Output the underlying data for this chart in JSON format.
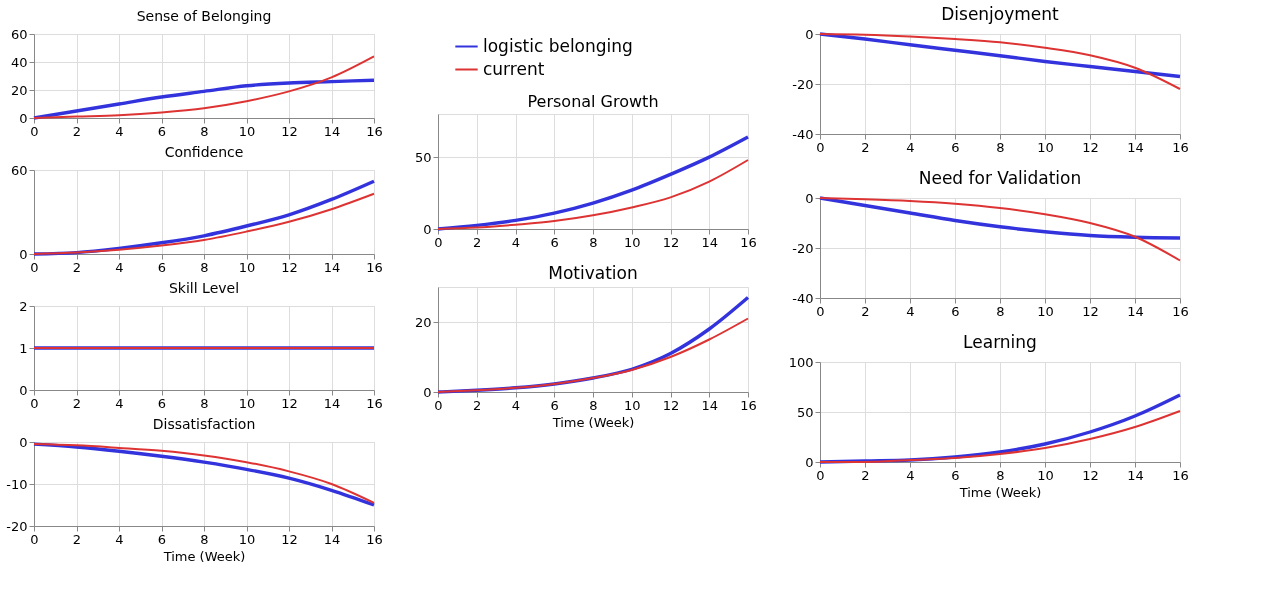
{
  "chart_data": [
    {
      "type": "line",
      "title": "Sense of Belonging",
      "x": [
        0,
        2,
        4,
        6,
        8,
        10,
        12,
        14,
        16
      ],
      "xlim": [
        0,
        16
      ],
      "xticks": [
        0,
        2,
        4,
        6,
        8,
        10,
        12,
        14,
        16
      ],
      "ylim": [
        0,
        60
      ],
      "yticks": [
        0,
        20,
        40,
        60
      ],
      "grid": true,
      "legend": "top",
      "line_style": "solid",
      "series": [
        {
          "name": "logistic belonging",
          "color": "#3333dd",
          "values": [
            0,
            5,
            10,
            15,
            19,
            23,
            25,
            26,
            27
          ]
        },
        {
          "name": "current",
          "color": "#dd3333",
          "values": [
            0,
            1,
            2,
            4,
            7,
            12,
            19,
            29,
            44
          ]
        }
      ]
    },
    {
      "type": "line",
      "title": "Confidence",
      "x": [
        0,
        2,
        4,
        6,
        8,
        10,
        12,
        14,
        16
      ],
      "xlim": [
        0,
        16
      ],
      "xticks": [
        0,
        2,
        4,
        6,
        8,
        10,
        12,
        14,
        16
      ],
      "ylim": [
        0,
        60
      ],
      "yticks": [
        0,
        60
      ],
      "grid": true,
      "legend": "top",
      "line_style": "solid",
      "series": [
        {
          "name": "logistic belonging",
          "color": "#3333dd",
          "values": [
            0,
            1,
            4,
            8,
            13,
            20,
            28,
            39,
            52
          ]
        },
        {
          "name": "current",
          "color": "#dd3333",
          "values": [
            0,
            1,
            3,
            6,
            10,
            16,
            23,
            32,
            43
          ]
        }
      ]
    },
    {
      "type": "line",
      "title": "Skill Level",
      "x": [
        0,
        2,
        4,
        6,
        8,
        10,
        12,
        14,
        16
      ],
      "xlim": [
        0,
        16
      ],
      "xticks": [
        0,
        2,
        4,
        6,
        8,
        10,
        12,
        14,
        16
      ],
      "ylim": [
        0,
        2
      ],
      "yticks": [
        0,
        1,
        2
      ],
      "grid": true,
      "legend": "top",
      "line_style": "solid",
      "series": [
        {
          "name": "logistic belonging",
          "color": "#3333dd",
          "values": [
            1,
            1,
            1,
            1,
            1,
            1,
            1,
            1,
            1
          ]
        },
        {
          "name": "current",
          "color": "#dd3333",
          "values": [
            1,
            1,
            1,
            1,
            1,
            1,
            1,
            1,
            1
          ]
        }
      ]
    },
    {
      "type": "line",
      "title": "Dissatisfaction",
      "xlabel": "Time (Week)",
      "x": [
        0,
        2,
        4,
        6,
        8,
        10,
        12,
        14,
        16
      ],
      "xlim": [
        0,
        16
      ],
      "xticks": [
        0,
        2,
        4,
        6,
        8,
        10,
        12,
        14,
        16
      ],
      "ylim": [
        -20,
        0
      ],
      "yticks": [
        -20,
        -10,
        0
      ],
      "grid": true,
      "legend": "top",
      "line_style": "solid",
      "series": [
        {
          "name": "logistic belonging",
          "color": "#3333dd",
          "values": [
            -0.5,
            -1.2,
            -2.2,
            -3.4,
            -4.8,
            -6.5,
            -8.6,
            -11.5,
            -15
          ]
        },
        {
          "name": "current",
          "color": "#dd3333",
          "values": [
            -0.5,
            -0.8,
            -1.4,
            -2.1,
            -3.2,
            -4.8,
            -7,
            -10,
            -14.5
          ]
        }
      ]
    },
    {
      "type": "line",
      "title": "Personal Growth",
      "x": [
        0,
        2,
        4,
        6,
        8,
        10,
        12,
        14,
        16
      ],
      "xlim": [
        0,
        16
      ],
      "xticks": [
        0,
        2,
        4,
        6,
        8,
        10,
        12,
        14,
        16
      ],
      "ylim": [
        0,
        80
      ],
      "yticks": [
        0,
        50
      ],
      "grid": true,
      "legend": "top",
      "line_style": "solid",
      "series": [
        {
          "name": "logistic belonging",
          "color": "#3333dd",
          "values": [
            0,
            2.5,
            6,
            11,
            18,
            27,
            38,
            50,
            64
          ]
        },
        {
          "name": "current",
          "color": "#dd3333",
          "values": [
            0,
            1,
            3,
            5.5,
            9.5,
            15,
            22,
            33,
            48
          ]
        }
      ]
    },
    {
      "type": "line",
      "title": "Motivation",
      "xlabel": "Time (Week)",
      "x": [
        0,
        2,
        4,
        6,
        8,
        10,
        12,
        14,
        16
      ],
      "xlim": [
        0,
        16
      ],
      "xticks": [
        0,
        2,
        4,
        6,
        8,
        10,
        12,
        14,
        16
      ],
      "ylim": [
        0,
        30
      ],
      "yticks": [
        0,
        20
      ],
      "grid": true,
      "legend": "top",
      "line_style": "solid",
      "series": [
        {
          "name": "logistic belonging",
          "color": "#3333dd",
          "values": [
            0,
            0.5,
            1.2,
            2.3,
            4,
            6.5,
            11,
            18,
            27
          ]
        },
        {
          "name": "current",
          "color": "#dd3333",
          "values": [
            0,
            0.5,
            1.2,
            2.3,
            4,
            6.3,
            10,
            15,
            21
          ]
        }
      ]
    },
    {
      "type": "line",
      "title": "Disenjoyment",
      "x": [
        0,
        2,
        4,
        6,
        8,
        10,
        12,
        14,
        16
      ],
      "xlim": [
        0,
        16
      ],
      "xticks": [
        0,
        2,
        4,
        6,
        8,
        10,
        12,
        14,
        16
      ],
      "ylim": [
        -40,
        0
      ],
      "yticks": [
        -40,
        -20,
        0
      ],
      "grid": true,
      "legend": "top",
      "line_style": "solid",
      "series": [
        {
          "name": "logistic belonging",
          "color": "#3333dd",
          "values": [
            0,
            -2,
            -4.3,
            -6.5,
            -8.7,
            -11,
            -13,
            -15,
            -17
          ]
        },
        {
          "name": "current",
          "color": "#dd3333",
          "values": [
            0,
            -0.3,
            -1,
            -2,
            -3.3,
            -5.5,
            -8.5,
            -13.5,
            -22
          ]
        }
      ]
    },
    {
      "type": "line",
      "title": "Need for Validation",
      "x": [
        0,
        2,
        4,
        6,
        8,
        10,
        12,
        14,
        16
      ],
      "xlim": [
        0,
        16
      ],
      "xticks": [
        0,
        2,
        4,
        6,
        8,
        10,
        12,
        14,
        16
      ],
      "ylim": [
        -40,
        0
      ],
      "yticks": [
        -40,
        -20,
        0
      ],
      "grid": true,
      "legend": "top",
      "line_style": "solid",
      "series": [
        {
          "name": "logistic belonging",
          "color": "#3333dd",
          "values": [
            0,
            -3,
            -6,
            -9,
            -11.5,
            -13.5,
            -15,
            -15.7,
            -16
          ]
        },
        {
          "name": "current",
          "color": "#dd3333",
          "values": [
            0,
            -0.5,
            -1.2,
            -2.3,
            -4,
            -6.5,
            -10,
            -15.5,
            -25
          ]
        }
      ]
    },
    {
      "type": "line",
      "title": "Learning",
      "xlabel": "Time (Week)",
      "x": [
        0,
        2,
        4,
        6,
        8,
        10,
        12,
        14,
        16
      ],
      "xlim": [
        0,
        16
      ],
      "xticks": [
        0,
        2,
        4,
        6,
        8,
        10,
        12,
        14,
        16
      ],
      "ylim": [
        0,
        100
      ],
      "yticks": [
        0,
        50,
        100
      ],
      "grid": true,
      "legend": "top",
      "line_style": "solid",
      "series": [
        {
          "name": "logistic belonging",
          "color": "#3333dd",
          "values": [
            0,
            1,
            2,
            5,
            10,
            18,
            30,
            46,
            67
          ]
        },
        {
          "name": "current",
          "color": "#dd3333",
          "values": [
            0,
            0,
            2,
            4,
            8,
            14,
            23,
            35,
            51
          ]
        }
      ]
    }
  ]
}
